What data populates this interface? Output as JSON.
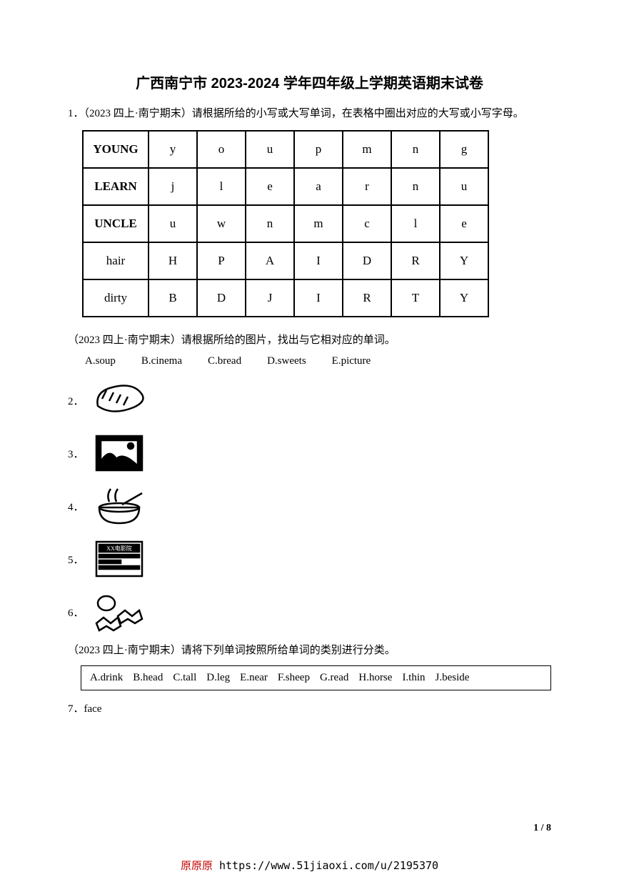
{
  "title": "广西南宁市 2023-2024 学年四年级上学期英语期末试卷",
  "q1": {
    "prefix": "1．（2023 四上·南宁期末）请根据所给的小写或大写单词，在表格中圈出对应的大写或小写字母。",
    "rows": [
      {
        "word": "YOUNG",
        "letters": [
          "y",
          "o",
          "u",
          "p",
          "m",
          "n",
          "g"
        ],
        "upperWord": true
      },
      {
        "word": "LEARN",
        "letters": [
          "j",
          "l",
          "e",
          "a",
          "r",
          "n",
          "u"
        ],
        "upperWord": true
      },
      {
        "word": "UNCLE",
        "letters": [
          "u",
          "w",
          "n",
          "m",
          "c",
          "l",
          "e"
        ],
        "upperWord": true
      },
      {
        "word": "hair",
        "letters": [
          "H",
          "P",
          "A",
          "I",
          "D",
          "R",
          "Y"
        ],
        "upperWord": false
      },
      {
        "word": "dirty",
        "letters": [
          "B",
          "D",
          "J",
          "I",
          "R",
          "T",
          "Y"
        ],
        "upperWord": false
      }
    ]
  },
  "picSection": {
    "intro": "（2023 四上·南宁期末）请根据所给的图片，找出与它相对应的单词。",
    "options": [
      "A.soup",
      "B.cinema",
      "C.bread",
      "D.sweets",
      "E.picture"
    ],
    "items": [
      {
        "num": "2．",
        "icon": "bread"
      },
      {
        "num": "3．",
        "icon": "picture"
      },
      {
        "num": "4．",
        "icon": "soup"
      },
      {
        "num": "5．",
        "icon": "cinema"
      },
      {
        "num": "6．",
        "icon": "sweets"
      }
    ]
  },
  "catSection": {
    "intro": "（2023 四上·南宁期末）请将下列单词按照所给单词的类别进行分类。",
    "options": [
      "A.drink",
      "B.head",
      "C.tall",
      "D.leg",
      "E.near",
      "F.sheep",
      "G.read",
      "H.horse",
      "I.thin",
      "J.beside"
    ]
  },
  "q7": "7．face",
  "pageNum": "1 / 8",
  "footer": {
    "prefix": "原原原 ",
    "url": "https://www.51jiaoxi.com/u/2195370"
  },
  "colors": {
    "text": "#000000",
    "border": "#000000",
    "footerRed": "#c00000"
  }
}
